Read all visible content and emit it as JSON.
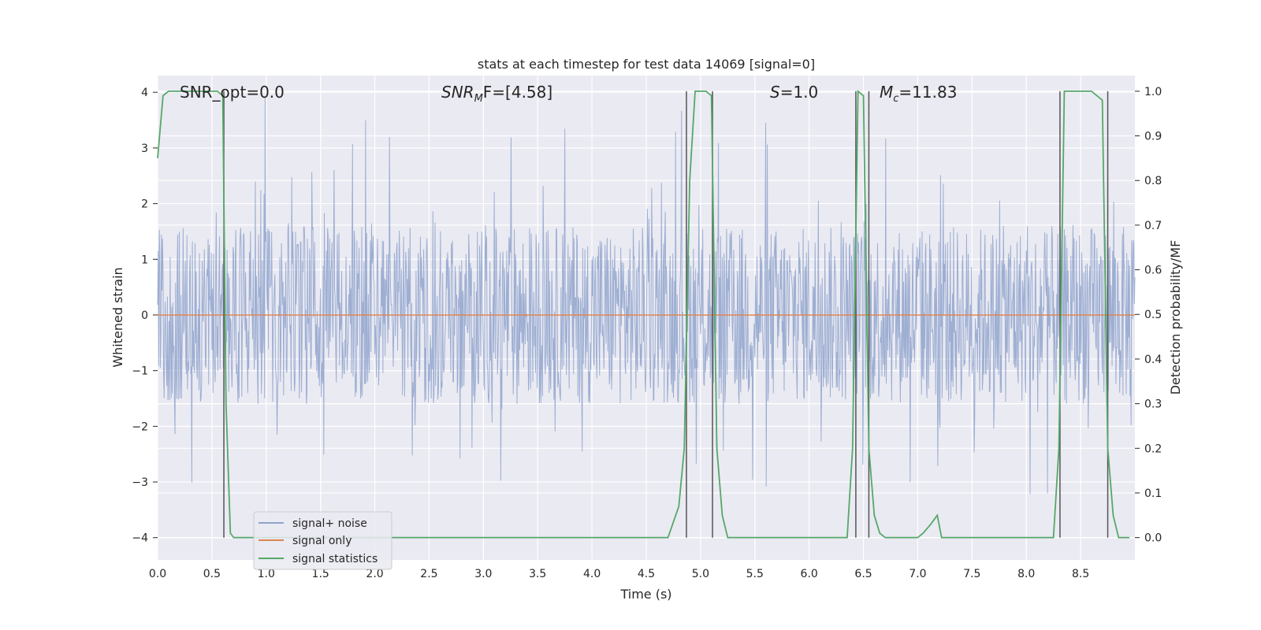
{
  "chart_data": {
    "type": "line",
    "title": "stats at each timestep for test data 14069 [signal=0]",
    "xlabel": "Time (s)",
    "ylabel": "Whitened strain",
    "y2label": "Detection probability/MF",
    "xlim": [
      0.0,
      9.0
    ],
    "ylim": [
      -4.4,
      4.3
    ],
    "y2lim": [
      -0.05,
      1.035
    ],
    "xticks": [
      "0.0",
      "0.5",
      "1.0",
      "1.5",
      "2.0",
      "2.5",
      "3.0",
      "3.5",
      "4.0",
      "4.5",
      "5.0",
      "5.5",
      "6.0",
      "6.5",
      "7.0",
      "7.5",
      "8.0",
      "8.5"
    ],
    "yticks": [
      "−4",
      "−3",
      "−2",
      "−1",
      "0",
      "1",
      "2",
      "3",
      "4"
    ],
    "y2ticks": [
      "0.0",
      "0.1",
      "0.2",
      "0.3",
      "0.4",
      "0.5",
      "0.6",
      "0.7",
      "0.8",
      "0.9",
      "1.0"
    ],
    "grid": true,
    "legend_position": "lower-left",
    "annotations": {
      "snr_opt": "SNR_opt=0.0",
      "snr_mf_base": "SNR",
      "snr_mf_sub": "M",
      "snr_mf_rest": "F=[4.58]",
      "s_var": "S",
      "s_rest": "=1.0",
      "mc_var": "M",
      "mc_sub": "c",
      "mc_rest": "=11.83"
    },
    "series": [
      {
        "name": "signal+ noise",
        "color": "#8fa3cc",
        "axis": "left",
        "envelope_typical": 1.6,
        "envelope_peak": 4.0,
        "t_end": 9.0
      },
      {
        "name": "signal only",
        "color": "#dd8452",
        "axis": "left",
        "x": [
          0.0,
          9.0
        ],
        "y": [
          0.0,
          0.0
        ]
      },
      {
        "name": "signal statistics",
        "color": "#55a868",
        "axis": "right",
        "x": [
          0.0,
          0.05,
          0.1,
          0.2,
          0.3,
          0.4,
          0.5,
          0.55,
          0.6,
          0.63,
          0.67,
          0.7,
          0.75,
          1.0,
          2.0,
          3.0,
          4.0,
          4.7,
          4.8,
          4.85,
          4.9,
          4.95,
          5.0,
          5.05,
          5.1,
          5.15,
          5.2,
          5.25,
          5.5,
          6.0,
          6.35,
          6.4,
          6.45,
          6.5,
          6.55,
          6.6,
          6.65,
          6.7,
          6.8,
          7.0,
          7.05,
          7.12,
          7.18,
          7.22,
          7.3,
          7.5,
          8.0,
          8.25,
          8.3,
          8.35,
          8.4,
          8.5,
          8.6,
          8.7,
          8.75,
          8.8,
          8.85,
          8.9,
          8.95
        ],
        "y": [
          0.85,
          0.99,
          1.0,
          1.0,
          1.0,
          1.0,
          1.0,
          1.0,
          0.99,
          0.3,
          0.01,
          0.0,
          0.0,
          0.0,
          0.0,
          0.0,
          0.0,
          0.0,
          0.07,
          0.2,
          0.8,
          1.0,
          1.0,
          1.0,
          0.99,
          0.2,
          0.05,
          0.0,
          0.0,
          0.0,
          0.0,
          0.2,
          1.0,
          0.99,
          0.2,
          0.05,
          0.01,
          0.0,
          0.0,
          0.0,
          0.01,
          0.03,
          0.05,
          0.0,
          0.0,
          0.0,
          0.0,
          0.0,
          0.2,
          1.0,
          1.0,
          1.0,
          1.0,
          0.98,
          0.2,
          0.05,
          0.0,
          0.0,
          0.0
        ]
      }
    ],
    "vlines": {
      "color": "#555555",
      "x": [
        0.61,
        4.87,
        5.11,
        6.43,
        6.55,
        8.31,
        8.75
      ],
      "ymin": -4.0,
      "ymax": 4.0
    }
  }
}
